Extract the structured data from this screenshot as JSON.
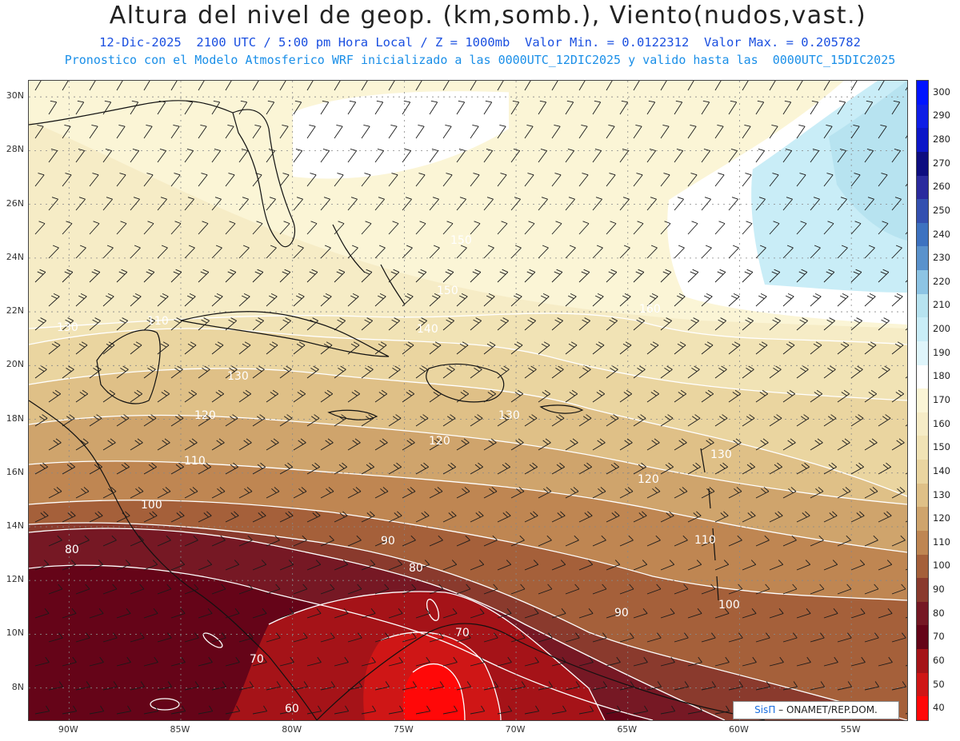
{
  "title": "Altura del nivel de geop. (km,somb.), Viento(nudos,vast.)",
  "subtitle_line1": "12-Dic-2025  2100 UTC / 5:00 pm Hora Local / Z = 1000mb  Valor Min. = 0.0122312  Valor Max. = 0.205782",
  "subtitle_line2": "Pronostico con el Modelo Atmosferico WRF inicializado a las 0000UTC_12DIC2025 y valido hasta las  0000UTC_15DIC2025",
  "credit": {
    "brand": "SisΠ",
    "text": " – ONAMET/REP.DOM."
  },
  "map": {
    "lon_range": [
      -91.8,
      -52.5
    ],
    "lat_range": [
      6.8,
      30.6
    ],
    "lat_ticks": [
      "30N",
      "28N",
      "26N",
      "24N",
      "22N",
      "20N",
      "18N",
      "16N",
      "14N",
      "12N",
      "10N",
      "8N"
    ],
    "lon_ticks": [
      "90W",
      "85W",
      "80W",
      "75W",
      "70W",
      "65W",
      "60W",
      "55W"
    ],
    "grid": true,
    "wind_barbs": true
  },
  "colorbar": {
    "levels": [
      "300",
      "290",
      "280",
      "270",
      "260",
      "250",
      "240",
      "230",
      "220",
      "210",
      "200",
      "190",
      "180",
      "170",
      "160",
      "150",
      "140",
      "130",
      "120",
      "110",
      "100",
      "90",
      "80",
      "70",
      "60",
      "50",
      "40"
    ],
    "colors": {
      "300": "#0014ff",
      "290": "#0f1ee6",
      "280": "#0c16c8",
      "270": "#0d0d80",
      "260": "#2a2a9e",
      "250": "#3450b0",
      "240": "#3d72c0",
      "230": "#5a92cc",
      "220": "#8dc4e4",
      "210": "#b7e3f0",
      "200": "#c9edf7",
      "190": "#dff5fb",
      "180": "#ffffff",
      "170": "#fbf5d6",
      "160": "#f6ecc6",
      "150": "#f1e3b5",
      "140": "#ead5a0",
      "130": "#dfc087",
      "120": "#cfa46c",
      "110": "#bf8652",
      "100": "#a5603a",
      "90": "#8a3a2d",
      "80": "#761824",
      "70": "#650418",
      "60": "#a51318",
      "50": "#cf1616",
      "40": "#ff0808"
    }
  },
  "contour_labels": [
    {
      "text": "130"
    },
    {
      "text": "110"
    },
    {
      "text": "140"
    },
    {
      "text": "130"
    },
    {
      "text": "120"
    },
    {
      "text": "120"
    },
    {
      "text": "110"
    },
    {
      "text": "130"
    },
    {
      "text": "130"
    },
    {
      "text": "120"
    },
    {
      "text": "100"
    },
    {
      "text": "90"
    },
    {
      "text": "80"
    },
    {
      "text": "80"
    },
    {
      "text": "70"
    },
    {
      "text": "70"
    },
    {
      "text": "60"
    },
    {
      "text": "90"
    },
    {
      "text": "100"
    },
    {
      "text": "110"
    },
    {
      "text": "150"
    },
    {
      "text": "160"
    },
    {
      "text": "150"
    }
  ]
}
